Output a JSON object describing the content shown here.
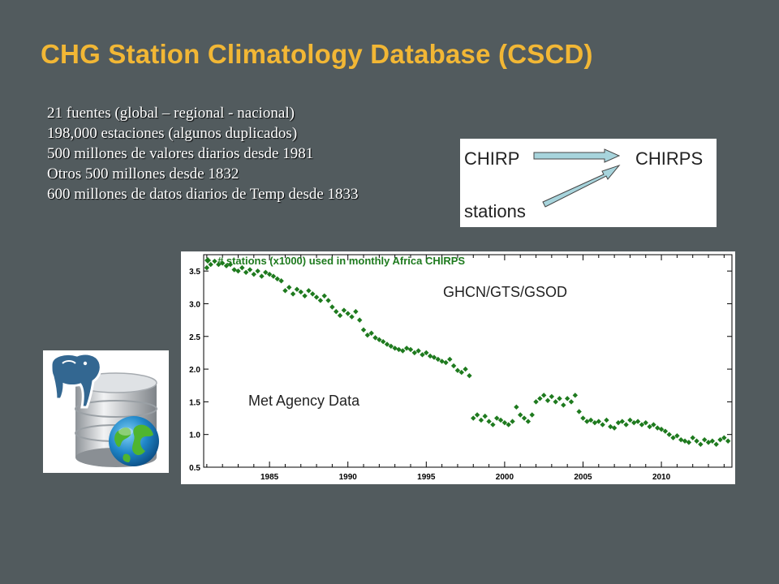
{
  "title": "CHG Station Climatology Database (CSCD)",
  "bullets": [
    "21 fuentes (global – regional - nacional)",
    "198,000 estaciones (algunos duplicados)",
    "500 millones de valores diarios desde 1981",
    "Otros 500 millones desde 1832",
    "600 millones de datos diarios de Temp desde 1833"
  ],
  "schema": {
    "left": "CHIRP",
    "right": "CHIRPS",
    "bottom": "stations",
    "arrow_color": "#a7d4dc"
  },
  "icons": [
    "database-globe-icon",
    "elephant-logo-icon"
  ],
  "chart_data": {
    "type": "scatter",
    "title": "# stations (x1000) used in monthly Africa CHIRPS",
    "legend_marker": "diamond",
    "color": "#1e7a1e",
    "xlabel": "",
    "ylabel": "",
    "xlim": [
      1980.8,
      2014.5
    ],
    "ylim": [
      0.5,
      3.75
    ],
    "xticks": [
      1985,
      1990,
      1995,
      2000,
      2005,
      2010
    ],
    "yticks": [
      "0.5",
      "1.0",
      "1.5",
      "2.0",
      "2.5",
      "3.0",
      "3.5"
    ],
    "annotations": [
      "GHCN/GTS/GSOD",
      "Met Agency Data"
    ],
    "series": [
      {
        "x": [
          1981.0,
          1981.25,
          1981.5,
          1981.75,
          1982.0,
          1982.25,
          1982.5,
          1982.75,
          1983.0,
          1983.25,
          1983.5,
          1983.75,
          1984.0,
          1984.25,
          1984.5,
          1984.75,
          1985.0,
          1985.25,
          1985.5,
          1985.75,
          1986.0,
          1986.25,
          1986.5,
          1986.75,
          1987.0,
          1987.25,
          1987.5,
          1987.75,
          1988.0,
          1988.25,
          1988.5,
          1988.75,
          1989.0,
          1989.25,
          1989.5,
          1989.75,
          1990.0,
          1990.25,
          1990.5,
          1990.75,
          1991.0,
          1991.25,
          1991.5,
          1991.75,
          1992.0,
          1992.25,
          1992.5,
          1992.75,
          1993.0,
          1993.25,
          1993.5,
          1993.75,
          1994.0,
          1994.25,
          1994.5,
          1994.75,
          1995.0,
          1995.25,
          1995.5,
          1995.75,
          1996.0,
          1996.25,
          1996.5,
          1996.75,
          1997.0,
          1997.25,
          1997.5,
          1997.75,
          1998.0,
          1998.25,
          1998.5,
          1998.75,
          1999.0,
          1999.25,
          1999.5,
          1999.75,
          2000.0,
          2000.25,
          2000.5,
          2000.75,
          2001.0,
          2001.25,
          2001.5,
          2001.75,
          2002.0,
          2002.25,
          2002.5,
          2002.75,
          2003.0,
          2003.25,
          2003.5,
          2003.75,
          2004.0,
          2004.25,
          2004.5,
          2004.75,
          2005.0,
          2005.25,
          2005.5,
          2005.75,
          2006.0,
          2006.25,
          2006.5,
          2006.75,
          2007.0,
          2007.25,
          2007.5,
          2007.75,
          2008.0,
          2008.25,
          2008.5,
          2008.75,
          2009.0,
          2009.25,
          2009.5,
          2009.75,
          2010.0,
          2010.25,
          2010.5,
          2010.75,
          2011.0,
          2011.25,
          2011.5,
          2011.75,
          2012.0,
          2012.25,
          2012.5,
          2012.75,
          2013.0,
          2013.25,
          2013.5,
          2013.75,
          2014.0,
          2014.25
        ],
        "values": [
          3.55,
          3.6,
          3.65,
          3.6,
          3.62,
          3.58,
          3.6,
          3.52,
          3.5,
          3.55,
          3.48,
          3.52,
          3.45,
          3.5,
          3.42,
          3.48,
          3.45,
          3.42,
          3.38,
          3.35,
          3.2,
          3.25,
          3.15,
          3.22,
          3.18,
          3.12,
          3.2,
          3.15,
          3.1,
          3.05,
          3.12,
          3.05,
          2.95,
          2.88,
          2.82,
          2.9,
          2.85,
          2.8,
          2.88,
          2.75,
          2.6,
          2.52,
          2.55,
          2.48,
          2.45,
          2.42,
          2.38,
          2.35,
          2.32,
          2.3,
          2.28,
          2.32,
          2.3,
          2.25,
          2.28,
          2.22,
          2.25,
          2.2,
          2.18,
          2.15,
          2.12,
          2.1,
          2.15,
          2.05,
          1.98,
          1.95,
          2.0,
          1.9,
          1.25,
          1.3,
          1.22,
          1.28,
          1.2,
          1.15,
          1.25,
          1.22,
          1.18,
          1.15,
          1.2,
          1.42,
          1.3,
          1.25,
          1.2,
          1.3,
          1.5,
          1.55,
          1.6,
          1.52,
          1.58,
          1.5,
          1.55,
          1.45,
          1.55,
          1.5,
          1.6,
          1.35,
          1.25,
          1.2,
          1.22,
          1.18,
          1.2,
          1.15,
          1.22,
          1.12,
          1.1,
          1.18,
          1.2,
          1.15,
          1.22,
          1.18,
          1.2,
          1.15,
          1.18,
          1.12,
          1.15,
          1.1,
          1.08,
          1.05,
          1.0,
          0.95,
          0.98,
          0.92,
          0.9,
          0.88,
          0.95,
          0.9,
          0.85,
          0.92,
          0.88,
          0.9,
          0.85,
          0.92,
          0.95,
          0.9
        ]
      }
    ]
  }
}
